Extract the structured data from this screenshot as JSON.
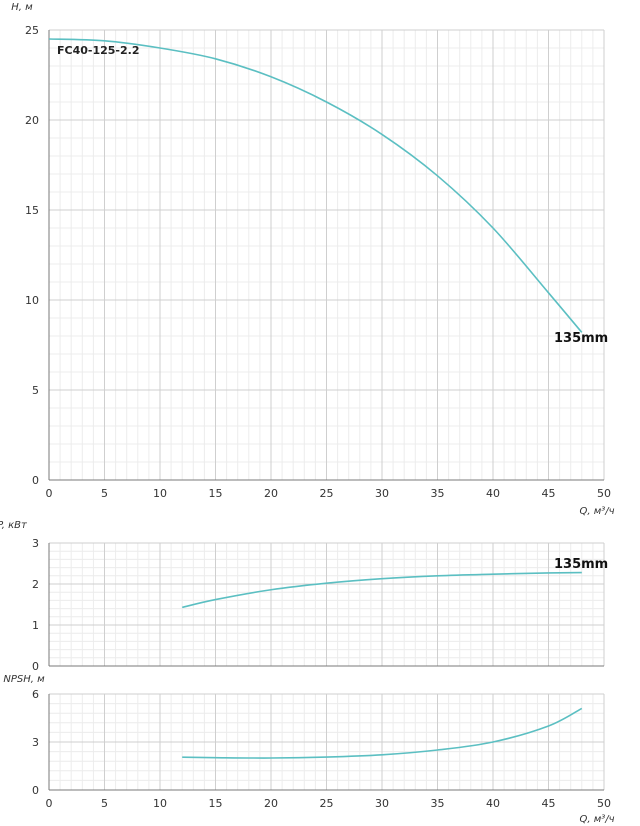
{
  "chart_data": [
    {
      "id": "head",
      "type": "line",
      "title": "FC40-125-2.2",
      "ylabel": "H, м",
      "xlabel": "Q, м³/ч",
      "xlim": [
        0,
        50
      ],
      "ylim": [
        0,
        25
      ],
      "xticks": [
        0,
        5,
        10,
        15,
        20,
        25,
        30,
        35,
        40,
        45,
        50
      ],
      "yticks": [
        0,
        5,
        10,
        15,
        20,
        25
      ],
      "grid": true,
      "series": [
        {
          "name": "135mm",
          "color": "#5bbfc2",
          "x": [
            0,
            5,
            10,
            15,
            20,
            25,
            30,
            35,
            40,
            45,
            48
          ],
          "y": [
            24.5,
            24.4,
            24.0,
            23.4,
            22.4,
            21.0,
            19.2,
            16.9,
            14.0,
            10.4,
            8.2
          ]
        }
      ]
    },
    {
      "id": "power",
      "type": "line",
      "ylabel": "P, кВт",
      "xlim": [
        0,
        50
      ],
      "ylim": [
        0,
        3
      ],
      "yticks": [
        0,
        1,
        2,
        3
      ],
      "grid": true,
      "series": [
        {
          "name": "135mm",
          "color": "#5bbfc2",
          "x": [
            12,
            15,
            20,
            25,
            30,
            35,
            40,
            45,
            48
          ],
          "y": [
            1.43,
            1.62,
            1.86,
            2.02,
            2.13,
            2.2,
            2.24,
            2.27,
            2.28
          ]
        }
      ]
    },
    {
      "id": "npsh",
      "type": "line",
      "ylabel": "NPSH, м",
      "xlabel": "Q, м³/ч",
      "xlim": [
        0,
        50
      ],
      "ylim": [
        0,
        6
      ],
      "xticks": [
        0,
        5,
        10,
        15,
        20,
        25,
        30,
        35,
        40,
        45,
        50
      ],
      "yticks": [
        0,
        3,
        6
      ],
      "grid": true,
      "series": [
        {
          "color": "#5bbfc2",
          "x": [
            12,
            15,
            20,
            25,
            30,
            35,
            40,
            45,
            48
          ],
          "y": [
            2.05,
            2.02,
            2.0,
            2.06,
            2.2,
            2.5,
            3.0,
            4.0,
            5.1
          ]
        }
      ]
    }
  ]
}
